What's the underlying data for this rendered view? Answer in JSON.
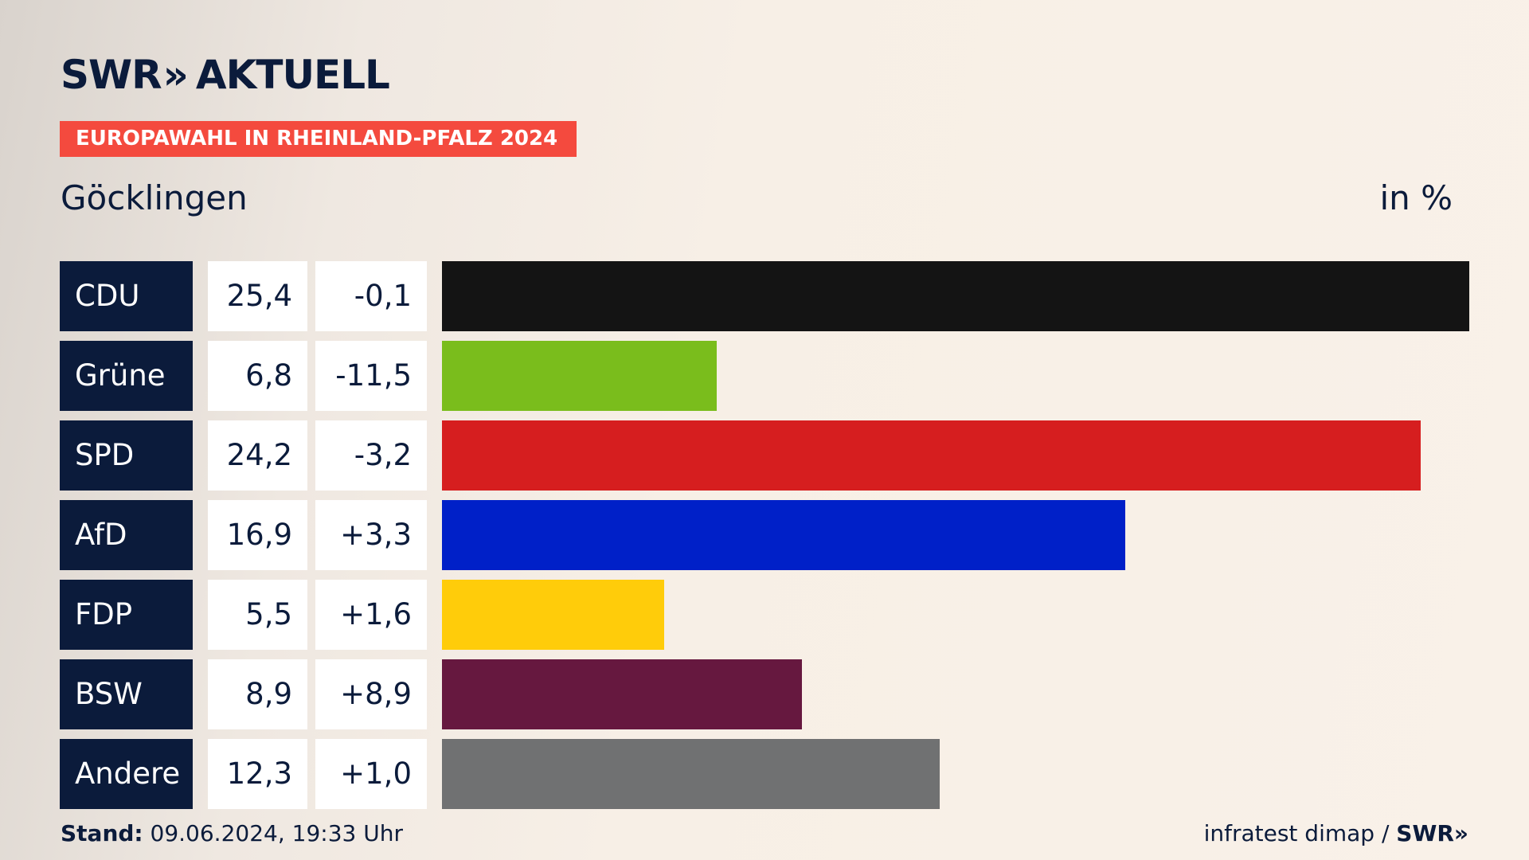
{
  "header": {
    "logo_text": "SWR",
    "logo_chevrons": "»",
    "logo_word": "AKTUELL",
    "banner": "EUROPAWAHL IN RHEINLAND-PFALZ 2024",
    "place": "Göcklingen",
    "unit": "in %"
  },
  "chart_data": {
    "type": "bar",
    "orientation": "horizontal",
    "title": "EUROPAWAHL IN RHEINLAND-PFALZ 2024",
    "subtitle": "Göcklingen",
    "unit": "in %",
    "max_value": 25.4,
    "categories": [
      "CDU",
      "Grüne",
      "SPD",
      "AfD",
      "FDP",
      "BSW",
      "Andere"
    ],
    "values": [
      25.4,
      6.8,
      24.2,
      16.9,
      5.5,
      8.9,
      12.3
    ],
    "values_label": [
      "25,4",
      "6,8",
      "24,2",
      "16,9",
      "5,5",
      "8,9",
      "12,3"
    ],
    "diff_label": [
      "-0,1",
      "-11,5",
      "-3,2",
      "+3,3",
      "+1,6",
      "+8,9",
      "+1,0"
    ],
    "colors": [
      "#141414",
      "#7abd1c",
      "#d61e1f",
      "#0020c8",
      "#ffcc0a",
      "#66183f",
      "#707172"
    ]
  },
  "footer": {
    "stand_label": "Stand:",
    "stand_value": " 09.06.2024, 19:33 Uhr",
    "source": "infratest dimap / ",
    "source_logo": "SWR»"
  }
}
